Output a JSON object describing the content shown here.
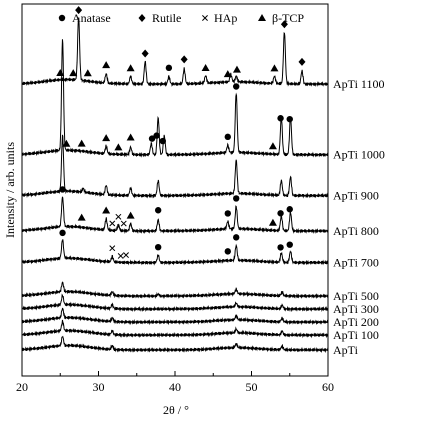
{
  "chart_data": {
    "type": "line",
    "title": "",
    "xlabel": "2θ / °",
    "ylabel": "Intensity / arb. units",
    "xlim": [
      20,
      60
    ],
    "xticks": [
      "20",
      "30",
      "40",
      "50",
      "60"
    ],
    "grid": false,
    "legend_placement": "top",
    "legend": [
      {
        "name": "Anatase",
        "marker": "circle",
        "symbol": "●"
      },
      {
        "name": "Rutile",
        "marker": "diamond",
        "symbol": "◆"
      },
      {
        "name": "HAp",
        "marker": "cross",
        "symbol": "×"
      },
      {
        "name": "β-TCP",
        "marker": "triangle",
        "symbol": "▲"
      }
    ],
    "series": [
      {
        "name": "ApTi 1100",
        "baseline": 0.785,
        "peaks": [
          [
            27.4,
            0.17
          ],
          [
            36.1,
            0.06
          ],
          [
            41.2,
            0.04
          ],
          [
            44.0,
            0.02
          ],
          [
            54.3,
            0.14
          ],
          [
            56.6,
            0.035
          ],
          [
            31.0,
            0.025
          ],
          [
            34.2,
            0.02
          ],
          [
            39.2,
            0.02
          ],
          [
            47.3,
            0.02
          ],
          [
            48.0,
            0.015
          ],
          [
            53.0,
            0.02
          ]
        ],
        "markers": [
          {
            "type": "triangle",
            "x": [
              25.0,
              26.7,
              28.6,
              31.0,
              34.2,
              53.0,
              46.9,
              48.1,
              44.0
            ]
          },
          {
            "type": "diamond",
            "x": [
              27.4,
              36.1,
              41.2,
              54.3,
              56.6
            ]
          },
          {
            "type": "circle",
            "x": [
              39.2
            ]
          }
        ]
      },
      {
        "name": "ApTi 1000",
        "baseline": 0.595,
        "peaks": [
          [
            25.3,
            0.3
          ],
          [
            37.8,
            0.1
          ],
          [
            38.6,
            0.05
          ],
          [
            48.0,
            0.16
          ],
          [
            53.9,
            0.1
          ],
          [
            55.1,
            0.1
          ],
          [
            36.9,
            0.03
          ],
          [
            31.0,
            0.02
          ],
          [
            34.2,
            0.02
          ],
          [
            46.9,
            0.02
          ]
        ],
        "markers": [
          {
            "type": "triangle",
            "x": [
              25.8,
              27.8,
              31.0,
              32.6,
              34.2,
              52.8
            ]
          },
          {
            "type": "circle",
            "x": [
              37.0,
              37.6,
              38.4,
              46.9,
              48.0,
              53.8,
              55.0
            ]
          }
        ]
      },
      {
        "name": "ApTi 900",
        "baseline": 0.485,
        "peaks": [
          [
            25.3,
            0.15
          ],
          [
            37.8,
            0.04
          ],
          [
            48.0,
            0.09
          ],
          [
            53.9,
            0.04
          ],
          [
            55.1,
            0.05
          ],
          [
            31.0,
            0.025
          ],
          [
            34.2,
            0.02
          ],
          [
            28.0,
            0.01
          ]
        ],
        "markers": []
      },
      {
        "name": "ApTi 800",
        "baseline": 0.39,
        "peaks": [
          [
            25.3,
            0.08
          ],
          [
            37.8,
            0.03
          ],
          [
            48.0,
            0.06
          ],
          [
            53.9,
            0.04
          ],
          [
            55.1,
            0.05
          ],
          [
            31.0,
            0.03
          ],
          [
            34.2,
            0.02
          ],
          [
            46.9,
            0.02
          ],
          [
            32.6,
            0.015
          ]
        ],
        "markers": [
          {
            "type": "circle",
            "x": [
              25.3,
              37.8,
              46.9,
              48.0,
              53.8,
              55.0
            ]
          },
          {
            "type": "triangle",
            "x": [
              27.8,
              31.0,
              34.2,
              52.8
            ]
          },
          {
            "type": "cross",
            "x": [
              31.8,
              32.6,
              33.3
            ]
          }
        ]
      },
      {
        "name": "ApTi 700",
        "baseline": 0.305,
        "peaks": [
          [
            25.3,
            0.05
          ],
          [
            37.8,
            0.02
          ],
          [
            48.0,
            0.04
          ],
          [
            53.9,
            0.025
          ],
          [
            55.1,
            0.03
          ],
          [
            31.8,
            0.015
          ]
        ],
        "markers": [
          {
            "type": "circle",
            "x": [
              25.3,
              37.8,
              46.9,
              48.0,
              53.8,
              55.0
            ]
          },
          {
            "type": "cross",
            "x": [
              31.8,
              32.9,
              33.6
            ]
          }
        ]
      },
      {
        "name": "ApTi 500",
        "baseline": 0.215,
        "peaks": [
          [
            25.3,
            0.025
          ],
          [
            31.8,
            0.01
          ],
          [
            37.8,
            0.005
          ],
          [
            48.0,
            0.012
          ],
          [
            54.0,
            0.01
          ]
        ],
        "markers": []
      },
      {
        "name": "ApTi 300",
        "baseline": 0.18,
        "peaks": [
          [
            25.3,
            0.025
          ],
          [
            31.8,
            0.01
          ],
          [
            48.0,
            0.01
          ],
          [
            54.0,
            0.01
          ]
        ],
        "markers": []
      },
      {
        "name": "ApTi 200",
        "baseline": 0.145,
        "peaks": [
          [
            25.3,
            0.025
          ],
          [
            31.8,
            0.01
          ],
          [
            48.0,
            0.01
          ],
          [
            54.0,
            0.01
          ]
        ],
        "markers": []
      },
      {
        "name": "ApTi 100",
        "baseline": 0.11,
        "peaks": [
          [
            25.3,
            0.025
          ],
          [
            31.8,
            0.01
          ],
          [
            48.0,
            0.01
          ],
          [
            54.0,
            0.01
          ]
        ],
        "markers": []
      },
      {
        "name": "ApTi",
        "baseline": 0.07,
        "peaks": [
          [
            25.3,
            0.025
          ],
          [
            31.8,
            0.01
          ],
          [
            48.0,
            0.01
          ],
          [
            54.0,
            0.01
          ]
        ],
        "markers": []
      }
    ]
  }
}
